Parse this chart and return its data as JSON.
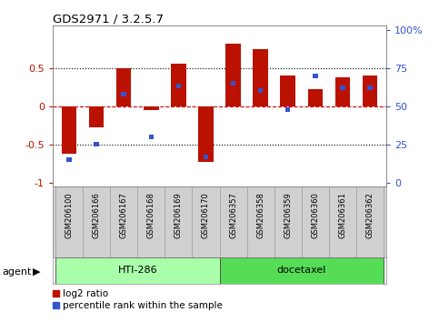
{
  "title": "GDS2971 / 3.2.5.7",
  "samples": [
    "GSM206100",
    "GSM206166",
    "GSM206167",
    "GSM206168",
    "GSM206169",
    "GSM206170",
    "GSM206357",
    "GSM206358",
    "GSM206359",
    "GSM206360",
    "GSM206361",
    "GSM206362"
  ],
  "log2_ratio": [
    -0.62,
    -0.28,
    0.5,
    -0.05,
    0.55,
    -0.72,
    0.82,
    0.74,
    0.4,
    0.22,
    0.38,
    0.4
  ],
  "percentile": [
    15,
    25,
    58,
    30,
    63,
    17,
    65,
    60,
    48,
    70,
    62,
    62
  ],
  "groups": [
    {
      "label": "HTI-286",
      "start": 0,
      "end": 5,
      "color": "#AAFFAA"
    },
    {
      "label": "docetaxel",
      "start": 6,
      "end": 11,
      "color": "#55DD55"
    }
  ],
  "agent_label": "agent",
  "bar_color_red": "#BB1100",
  "bar_color_blue": "#3355CC",
  "yticks_left": [
    -1,
    -0.5,
    0,
    0.5
  ],
  "ytick_labels_left": [
    "-1",
    "-0.5",
    "0",
    "0.5"
  ],
  "yticks_right_vals": [
    0,
    25,
    50,
    75,
    100
  ],
  "legend_log2": "log2 ratio",
  "legend_pct": "percentile rank within the sample",
  "background_color": "#ffffff",
  "xlabelbox_color": "#D0D0D0"
}
